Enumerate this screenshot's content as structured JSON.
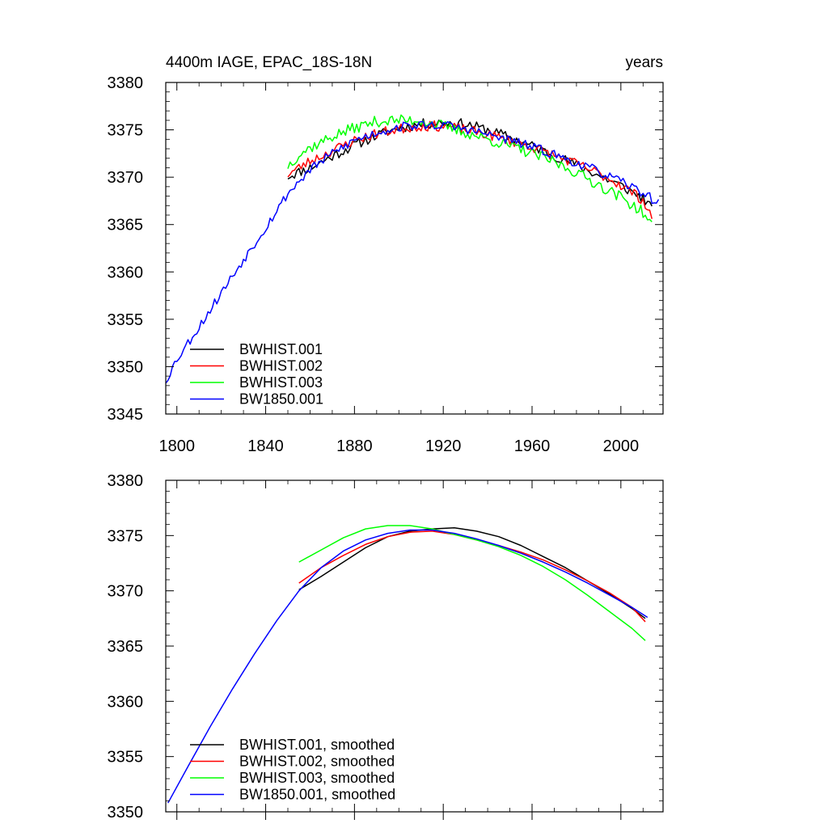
{
  "chart_data": [
    {
      "type": "line",
      "title": "4400m IAGE, EPAC_18S-18N",
      "title_right": "years",
      "xlim": [
        1795,
        2019
      ],
      "ylim": [
        3345,
        3380
      ],
      "xticks": [
        "1800",
        "1840",
        "1880",
        "1920",
        "1960",
        "2000"
      ],
      "yticks": [
        "3345",
        "3350",
        "3355",
        "3360",
        "3365",
        "3370",
        "3375",
        "3380"
      ],
      "grid": false,
      "legend_placement": "bottom-left",
      "series": [
        {
          "name": "BWHIST.001",
          "color": "#000000",
          "noise": 0.55,
          "seed": 11,
          "points": [
            [
              1850,
              3370.1
            ],
            [
              1860,
              3371.0
            ],
            [
              1870,
              3372.2
            ],
            [
              1880,
              3373.4
            ],
            [
              1890,
              3374.4
            ],
            [
              1900,
              3375.2
            ],
            [
              1910,
              3375.6
            ],
            [
              1920,
              3375.8
            ],
            [
              1930,
              3375.6
            ],
            [
              1940,
              3375.0
            ],
            [
              1950,
              3374.2
            ],
            [
              1960,
              3373.3
            ],
            [
              1970,
              3372.3
            ],
            [
              1980,
              3371.3
            ],
            [
              1990,
              3370.2
            ],
            [
              2000,
              3369.1
            ],
            [
              2010,
              3367.8
            ],
            [
              2014,
              3366.6
            ]
          ]
        },
        {
          "name": "BWHIST.002",
          "color": "#ff0000",
          "noise": 0.55,
          "seed": 23,
          "points": [
            [
              1850,
              3370.3
            ],
            [
              1860,
              3371.7
            ],
            [
              1870,
              3372.8
            ],
            [
              1880,
              3373.9
            ],
            [
              1890,
              3374.6
            ],
            [
              1900,
              3375.1
            ],
            [
              1910,
              3375.4
            ],
            [
              1920,
              3375.4
            ],
            [
              1930,
              3375.0
            ],
            [
              1940,
              3374.5
            ],
            [
              1950,
              3373.9
            ],
            [
              1960,
              3373.2
            ],
            [
              1970,
              3372.3
            ],
            [
              1980,
              3371.4
            ],
            [
              1990,
              3370.4
            ],
            [
              2000,
              3369.2
            ],
            [
              2010,
              3367.6
            ],
            [
              2014,
              3365.8
            ]
          ]
        },
        {
          "name": "BWHIST.003",
          "color": "#00ff00",
          "noise": 0.6,
          "seed": 37,
          "points": [
            [
              1850,
              3371.2
            ],
            [
              1855,
              3372.4
            ],
            [
              1860,
              3373.1
            ],
            [
              1870,
              3374.3
            ],
            [
              1880,
              3375.2
            ],
            [
              1890,
              3375.9
            ],
            [
              1900,
              3376.0
            ],
            [
              1910,
              3376.0
            ],
            [
              1920,
              3375.4
            ],
            [
              1930,
              3374.7
            ],
            [
              1940,
              3374.0
            ],
            [
              1950,
              3373.3
            ],
            [
              1960,
              3372.5
            ],
            [
              1970,
              3371.6
            ],
            [
              1980,
              3370.5
            ],
            [
              1990,
              3369.2
            ],
            [
              2000,
              3367.9
            ],
            [
              2010,
              3366.3
            ],
            [
              2014,
              3364.8
            ]
          ]
        },
        {
          "name": "BW1850.001",
          "color": "#0000ff",
          "noise": 0.5,
          "seed": 53,
          "points": [
            [
              1795,
              3348.5
            ],
            [
              1800,
              3350.8
            ],
            [
              1810,
              3354.2
            ],
            [
              1820,
              3357.8
            ],
            [
              1830,
              3361.3
            ],
            [
              1840,
              3364.7
            ],
            [
              1850,
              3368.3
            ],
            [
              1860,
              3370.8
            ],
            [
              1870,
              3372.5
            ],
            [
              1880,
              3373.9
            ],
            [
              1890,
              3374.7
            ],
            [
              1900,
              3375.3
            ],
            [
              1910,
              3375.5
            ],
            [
              1920,
              3375.5
            ],
            [
              1930,
              3375.1
            ],
            [
              1940,
              3374.5
            ],
            [
              1950,
              3373.9
            ],
            [
              1960,
              3373.2
            ],
            [
              1970,
              3372.4
            ],
            [
              1980,
              3371.5
            ],
            [
              1990,
              3370.6
            ],
            [
              2000,
              3369.5
            ],
            [
              2010,
              3368.4
            ],
            [
              2017,
              3367.2
            ]
          ]
        }
      ]
    },
    {
      "type": "line",
      "xlim": [
        1795,
        2019
      ],
      "ylim": [
        3350,
        3380
      ],
      "yticks": [
        "3350",
        "3355",
        "3360",
        "3365",
        "3370",
        "3375",
        "3380"
      ],
      "grid": false,
      "legend_placement": "bottom-left",
      "series": [
        {
          "name": "BWHIST.001, smoothed",
          "color": "#000000",
          "points": [
            [
              1855,
              3370.1
            ],
            [
              1865,
              3371.3
            ],
            [
              1875,
              3372.6
            ],
            [
              1885,
              3373.9
            ],
            [
              1895,
              3374.9
            ],
            [
              1905,
              3375.4
            ],
            [
              1915,
              3375.6
            ],
            [
              1925,
              3375.7
            ],
            [
              1935,
              3375.4
            ],
            [
              1945,
              3374.9
            ],
            [
              1955,
              3374.1
            ],
            [
              1965,
              3373.1
            ],
            [
              1975,
              3372.1
            ],
            [
              1985,
              3370.9
            ],
            [
              1995,
              3369.7
            ],
            [
              2005,
              3368.4
            ],
            [
              2011,
              3367.5
            ]
          ]
        },
        {
          "name": "BWHIST.002, smoothed",
          "color": "#ff0000",
          "points": [
            [
              1855,
              3370.7
            ],
            [
              1865,
              3372.1
            ],
            [
              1875,
              3373.2
            ],
            [
              1885,
              3374.2
            ],
            [
              1895,
              3374.9
            ],
            [
              1905,
              3375.3
            ],
            [
              1915,
              3375.4
            ],
            [
              1925,
              3375.1
            ],
            [
              1935,
              3374.6
            ],
            [
              1945,
              3374.1
            ],
            [
              1955,
              3373.5
            ],
            [
              1965,
              3372.8
            ],
            [
              1975,
              3371.9
            ],
            [
              1985,
              3370.9
            ],
            [
              1995,
              3369.8
            ],
            [
              2005,
              3368.5
            ],
            [
              2011,
              3367.2
            ]
          ]
        },
        {
          "name": "BWHIST.003, smoothed",
          "color": "#00ff00",
          "points": [
            [
              1855,
              3372.6
            ],
            [
              1865,
              3373.7
            ],
            [
              1875,
              3374.8
            ],
            [
              1885,
              3375.6
            ],
            [
              1895,
              3375.9
            ],
            [
              1905,
              3375.9
            ],
            [
              1915,
              3375.6
            ],
            [
              1925,
              3375.1
            ],
            [
              1935,
              3374.6
            ],
            [
              1945,
              3374.0
            ],
            [
              1955,
              3373.2
            ],
            [
              1965,
              3372.2
            ],
            [
              1975,
              3371.0
            ],
            [
              1985,
              3369.6
            ],
            [
              1995,
              3368.1
            ],
            [
              2005,
              3366.6
            ],
            [
              2011,
              3365.5
            ]
          ]
        },
        {
          "name": "BW1850.001, smoothed",
          "color": "#0000ff",
          "points": [
            [
              1796,
              3350.8
            ],
            [
              1805,
              3354.1
            ],
            [
              1815,
              3357.7
            ],
            [
              1825,
              3361.1
            ],
            [
              1835,
              3364.3
            ],
            [
              1845,
              3367.3
            ],
            [
              1855,
              3370.0
            ],
            [
              1865,
              3372.1
            ],
            [
              1875,
              3373.6
            ],
            [
              1885,
              3374.6
            ],
            [
              1895,
              3375.2
            ],
            [
              1905,
              3375.5
            ],
            [
              1915,
              3375.5
            ],
            [
              1925,
              3375.2
            ],
            [
              1935,
              3374.7
            ],
            [
              1945,
              3374.1
            ],
            [
              1955,
              3373.4
            ],
            [
              1965,
              3372.6
            ],
            [
              1975,
              3371.7
            ],
            [
              1985,
              3370.7
            ],
            [
              1995,
              3369.6
            ],
            [
              2005,
              3368.5
            ],
            [
              2012,
              3367.6
            ]
          ]
        }
      ]
    }
  ]
}
